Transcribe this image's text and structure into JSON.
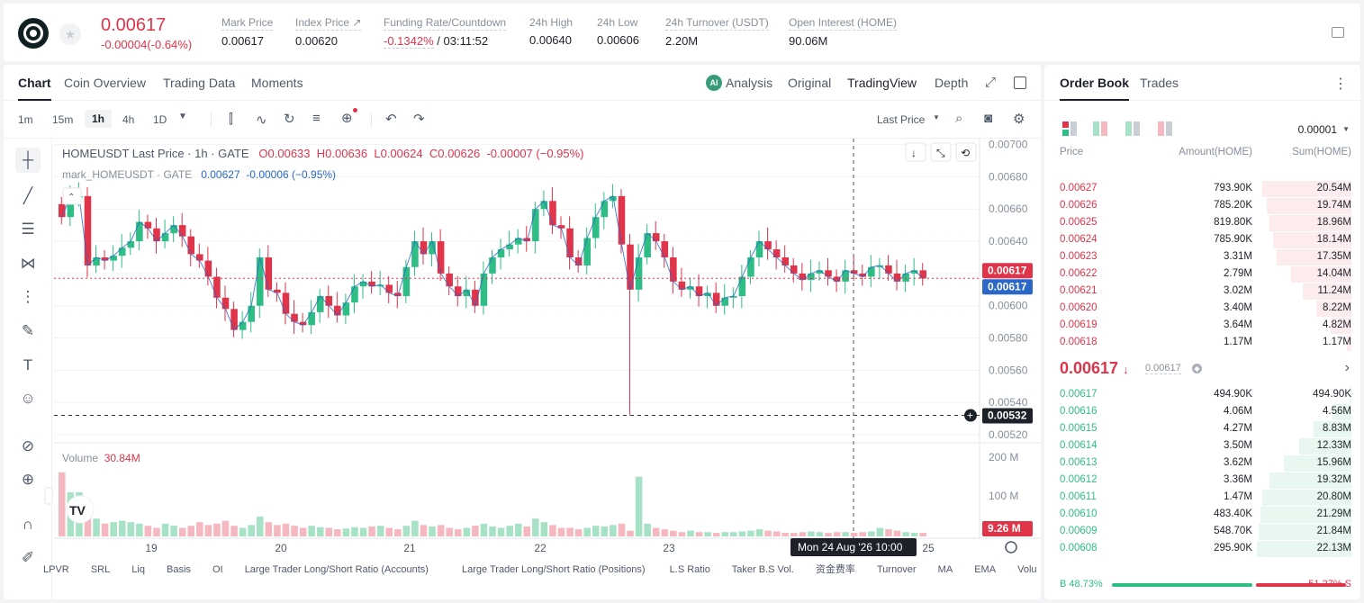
{
  "header": {
    "price": "0.00617",
    "change": "-0.00004(-0.64%)",
    "stats": [
      {
        "label": "Mark Price",
        "value": "0.00617"
      },
      {
        "label": "Index Price ↗",
        "value": "0.00620"
      },
      {
        "label": "Funding Rate/Countdown",
        "value": "-0.1342%",
        "value2": "/ 03:11:52"
      },
      {
        "label": "24h High",
        "value": "0.00640"
      },
      {
        "label": "24h Low",
        "value": "0.00606"
      },
      {
        "label": "24h Turnover (USDT)",
        "value": "2.20M"
      },
      {
        "label": "Open Interest (HOME)",
        "value": "90.06M"
      }
    ]
  },
  "tabs": {
    "left": [
      "Chart",
      "Coin Overview",
      "Trading Data",
      "Moments"
    ],
    "right": {
      "analysis": "Analysis",
      "original": "Original",
      "tradingview": "TradingView",
      "depth": "Depth"
    }
  },
  "toolbar": {
    "timeframes": [
      "1m",
      "15m",
      "1h",
      "4h",
      "1D"
    ],
    "last_price": "Last Price"
  },
  "chart_legend": {
    "symbol": "HOMEUSDT Last Price · 1h · GATE",
    "o": "O0.00633",
    "h": "H0.00636",
    "l": "L0.00624",
    "c": "C0.00626",
    "chg": "-0.00007 (−0.95%)",
    "mark_symbol": "mark_HOMEUSDT · GATE",
    "mark_val": "0.00627",
    "mark_chg": "-0.00006 (−0.95%)",
    "volume_label": "Volume",
    "volume_val": "30.84M"
  },
  "chart_data": {
    "type": "candlestick",
    "y_ticks": [
      "0.00700",
      "0.00680",
      "0.00660",
      "0.00640",
      "0.00620",
      "0.00600",
      "0.00580",
      "0.00560",
      "0.00540",
      "0.00520"
    ],
    "ylim": [
      0.00515,
      0.00702
    ],
    "x_ticks": [
      "19",
      "20",
      "21",
      "22",
      "23",
      "24",
      "25"
    ],
    "vol_ticks": [
      "200 M",
      "100 M"
    ],
    "last_price_tag": "0.00617",
    "mark_price_tag": "0.00617",
    "cursor_price": "0.00532",
    "vol_tag": "9.26 M",
    "cursor_time": "Mon 24 Aug '26   10:00",
    "close_series": [
      0.00655,
      0.00668,
      0.00668,
      0.00625,
      0.0063,
      0.00628,
      0.00631,
      0.00636,
      0.0064,
      0.00652,
      0.00648,
      0.0064,
      0.00645,
      0.0065,
      0.00643,
      0.00632,
      0.00628,
      0.00618,
      0.00605,
      0.00598,
      0.00585,
      0.0059,
      0.006,
      0.0063,
      0.0061,
      0.00608,
      0.00595,
      0.0059,
      0.00588,
      0.00596,
      0.00606,
      0.006,
      0.00594,
      0.00602,
      0.00612,
      0.00615,
      0.00612,
      0.00613,
      0.00608,
      0.00606,
      0.00624,
      0.0064,
      0.00632,
      0.0064,
      0.0062,
      0.00612,
      0.00606,
      0.0061,
      0.006,
      0.0062,
      0.0063,
      0.00635,
      0.00638,
      0.00642,
      0.0064,
      0.0066,
      0.00665,
      0.0065,
      0.00648,
      0.0063,
      0.00625,
      0.00642,
      0.00655,
      0.00665,
      0.00668,
      0.00638,
      0.0061,
      0.0063,
      0.00645,
      0.0064,
      0.0063,
      0.00615,
      0.0061,
      0.00612,
      0.00606,
      0.00608,
      0.006,
      0.00605,
      0.00606,
      0.00618,
      0.0063,
      0.0064,
      0.00635,
      0.0063,
      0.00625,
      0.0062,
      0.00616,
      0.0062,
      0.00622,
      0.00618,
      0.00615,
      0.00622,
      0.0062,
      0.00618,
      0.00624,
      0.00625,
      0.0062,
      0.00615,
      0.0062,
      0.00622,
      0.00617
    ],
    "volume_series": [
      0.9,
      0.62,
      0.62,
      0.3,
      0.25,
      0.18,
      0.2,
      0.22,
      0.2,
      0.18,
      0.15,
      0.12,
      0.18,
      0.15,
      0.12,
      0.15,
      0.2,
      0.16,
      0.18,
      0.22,
      0.15,
      0.12,
      0.16,
      0.28,
      0.2,
      0.16,
      0.18,
      0.15,
      0.12,
      0.15,
      0.13,
      0.12,
      0.1,
      0.11,
      0.13,
      0.12,
      0.14,
      0.15,
      0.12,
      0.1,
      0.15,
      0.22,
      0.16,
      0.14,
      0.16,
      0.12,
      0.1,
      0.12,
      0.15,
      0.18,
      0.14,
      0.12,
      0.15,
      0.18,
      0.14,
      0.25,
      0.2,
      0.16,
      0.12,
      0.12,
      0.1,
      0.12,
      0.15,
      0.14,
      0.16,
      0.18,
      0.08,
      0.84,
      0.18,
      0.12,
      0.1,
      0.08,
      0.06,
      0.08,
      0.06,
      0.06,
      0.05,
      0.06,
      0.06,
      0.07,
      0.08,
      0.1,
      0.08,
      0.07,
      0.05,
      0.05,
      0.06,
      0.07,
      0.06,
      0.05,
      0.06,
      0.06,
      0.05,
      0.06,
      0.07,
      0.12,
      0.1,
      0.08,
      0.06,
      0.05,
      0.05
    ]
  },
  "bottom_indicators": [
    "LPVR",
    "SRL",
    "Liq",
    "Basis",
    "OI",
    "Large Trader Long/Short Ratio (Accounts)",
    "Large Trader Long/Short Ratio (Positions)",
    "L.S Ratio",
    "Taker B.S Vol.",
    "资金费率",
    "Turnover",
    "MA",
    "EMA",
    "Volu"
  ],
  "orderbook": {
    "tabs": [
      "Order Book",
      "Trades"
    ],
    "precision": "0.00001",
    "headers": [
      "Price",
      "Amount(HOME)",
      "Sum(HOME)"
    ],
    "asks": [
      {
        "price": "0.00627",
        "amount": "793.90K",
        "sum": "20.54M",
        "depth": 0.93
      },
      {
        "price": "0.00626",
        "amount": "785.20K",
        "sum": "19.74M",
        "depth": 0.89
      },
      {
        "price": "0.00625",
        "amount": "819.80K",
        "sum": "18.96M",
        "depth": 0.86
      },
      {
        "price": "0.00624",
        "amount": "785.90K",
        "sum": "18.14M",
        "depth": 0.82
      },
      {
        "price": "0.00623",
        "amount": "3.31M",
        "sum": "17.35M",
        "depth": 0.78
      },
      {
        "price": "0.00622",
        "amount": "2.79M",
        "sum": "14.04M",
        "depth": 0.63
      },
      {
        "price": "0.00621",
        "amount": "3.02M",
        "sum": "11.24M",
        "depth": 0.51
      },
      {
        "price": "0.00620",
        "amount": "3.40M",
        "sum": "8.22M",
        "depth": 0.37
      },
      {
        "price": "0.00619",
        "amount": "3.64M",
        "sum": "4.82M",
        "depth": 0.22
      },
      {
        "price": "0.00618",
        "amount": "1.17M",
        "sum": "1.17M",
        "depth": 0.05
      }
    ],
    "mid_price": "0.00617",
    "mark_price": "0.00617",
    "bids": [
      {
        "price": "0.00617",
        "amount": "494.90K",
        "sum": "494.90K",
        "depth": 0.02
      },
      {
        "price": "0.00616",
        "amount": "4.06M",
        "sum": "4.56M",
        "depth": 0.2
      },
      {
        "price": "0.00615",
        "amount": "4.27M",
        "sum": "8.83M",
        "depth": 0.4
      },
      {
        "price": "0.00614",
        "amount": "3.50M",
        "sum": "12.33M",
        "depth": 0.55
      },
      {
        "price": "0.00613",
        "amount": "3.62M",
        "sum": "15.96M",
        "depth": 0.71
      },
      {
        "price": "0.00612",
        "amount": "3.36M",
        "sum": "19.32M",
        "depth": 0.86
      },
      {
        "price": "0.00611",
        "amount": "1.47M",
        "sum": "20.80M",
        "depth": 0.93
      },
      {
        "price": "0.00610",
        "amount": "483.40K",
        "sum": "21.29M",
        "depth": 0.95
      },
      {
        "price": "0.00609",
        "amount": "548.70K",
        "sum": "21.84M",
        "depth": 0.97
      },
      {
        "price": "0.00608",
        "amount": "295.90K",
        "sum": "22.13M",
        "depth": 0.99
      }
    ],
    "buy_pct": "B 48.73%",
    "sell_pct": "51.27% S",
    "buy_ratio": 0.4873
  },
  "colors": {
    "up": "#2ebd85",
    "down": "#e0344a"
  }
}
